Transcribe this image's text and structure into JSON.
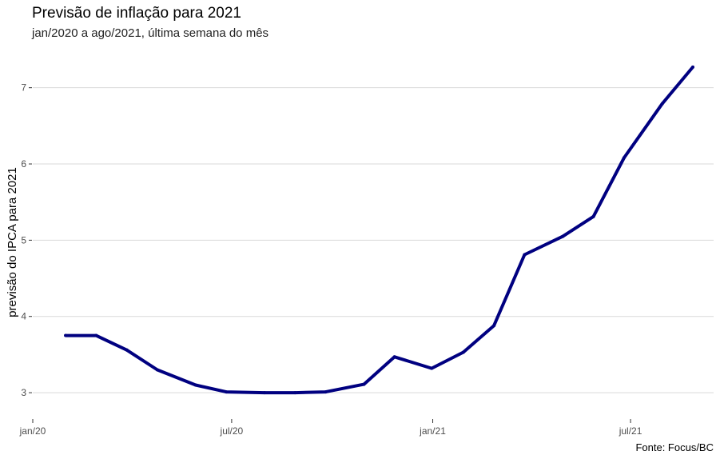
{
  "chart_data": {
    "type": "line",
    "title": "Previsão de inflação para 2021",
    "subtitle": "jan/2020 a ago/2021, última semana do mês",
    "xlabel": "",
    "ylabel": "previsão do IPCA para 2021",
    "caption": "Fonte: Focus/BC",
    "x": [
      "2020-01-31",
      "2020-02-28",
      "2020-03-27",
      "2020-04-24",
      "2020-05-29",
      "2020-06-26",
      "2020-07-31",
      "2020-08-28",
      "2020-09-25",
      "2020-10-30",
      "2020-11-27",
      "2020-12-31",
      "2021-01-29",
      "2021-02-26",
      "2021-03-26",
      "2021-04-30",
      "2021-05-28",
      "2021-06-25",
      "2021-07-30",
      "2021-08-27"
    ],
    "series": [
      {
        "values": [
          3.75,
          3.75,
          3.56,
          3.3,
          3.1,
          3.01,
          3.0,
          3.0,
          3.01,
          3.11,
          3.47,
          3.32,
          3.53,
          3.88,
          4.81,
          5.05,
          5.31,
          6.08,
          6.79,
          7.27
        ],
        "color": "#000080"
      }
    ],
    "xlim": [
      "2020-01-01",
      "2021-09-15"
    ],
    "ylim": [
      2.77,
      7.5
    ],
    "xticks": [
      {
        "date": "2020-01-01",
        "label": "jan/20"
      },
      {
        "date": "2020-07-01",
        "label": "jul/20"
      },
      {
        "date": "2021-01-01",
        "label": "jan/21"
      },
      {
        "date": "2021-07-01",
        "label": "jul/21"
      }
    ],
    "yticks": [
      3,
      4,
      5,
      6,
      7
    ],
    "grid": "horizontal"
  }
}
